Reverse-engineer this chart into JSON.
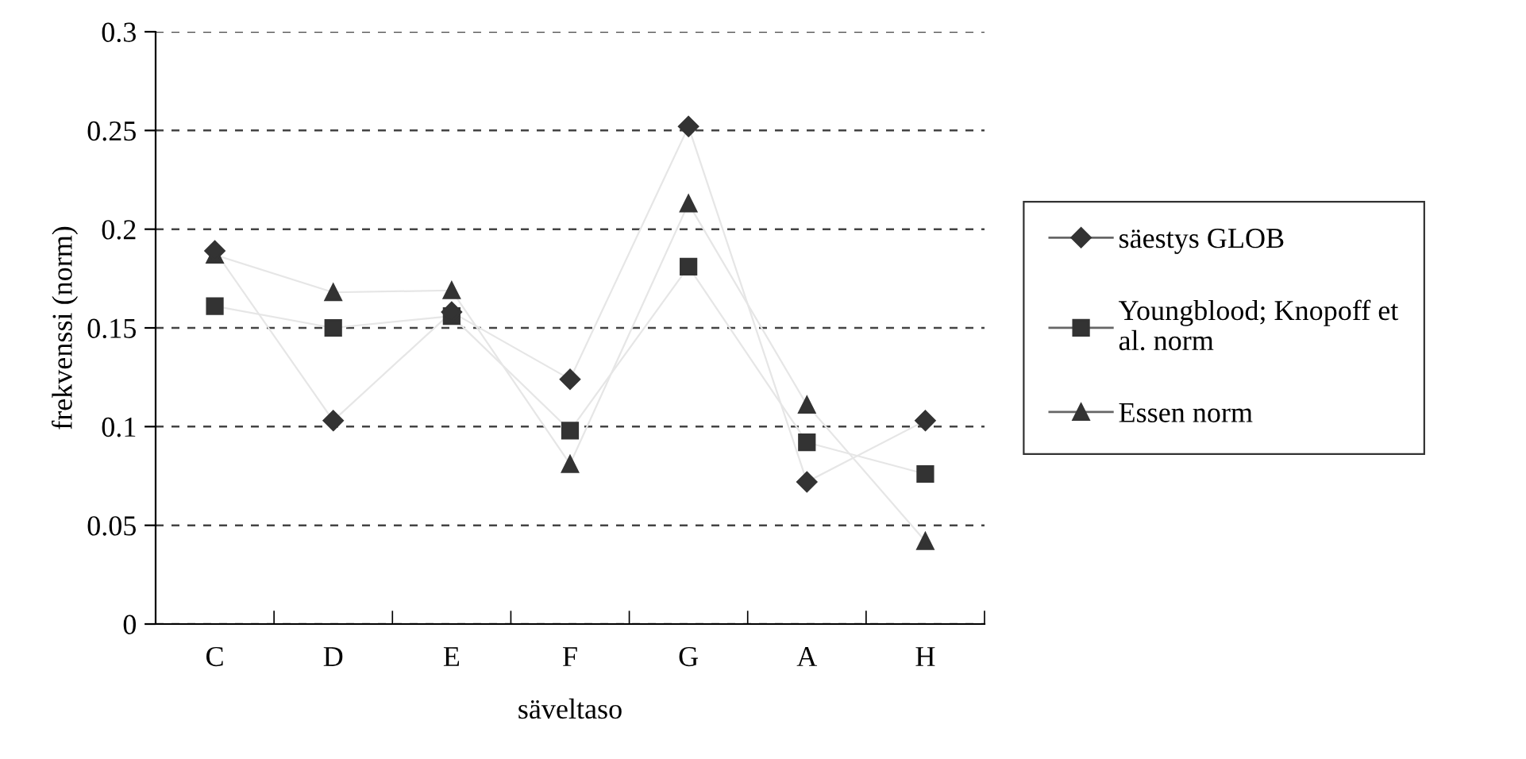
{
  "chart_data": {
    "type": "line",
    "xlabel": "säveltaso",
    "ylabel": "frekvenssi (norm)",
    "categories": [
      "C",
      "D",
      "E",
      "F",
      "G",
      "A",
      "H"
    ],
    "series": [
      {
        "name": "säestys GLOB",
        "color": "#333333",
        "marker": "diamond",
        "values": [
          0.189,
          0.103,
          0.158,
          0.124,
          0.252,
          0.072,
          0.103
        ]
      },
      {
        "name": "Youngblood; Knopoff et al. norm",
        "color": "#333333",
        "marker": "square",
        "values": [
          0.161,
          0.15,
          0.156,
          0.098,
          0.181,
          0.092,
          0.076
        ]
      },
      {
        "name": "Essen norm",
        "color": "#333333",
        "marker": "triangle",
        "values": [
          0.187,
          0.168,
          0.169,
          0.081,
          0.213,
          0.111,
          0.042
        ]
      }
    ],
    "ylim": [
      0,
      0.3
    ],
    "yticks": [
      0,
      0.05,
      0.1,
      0.15,
      0.2,
      0.25,
      0.3
    ],
    "grid": "y",
    "legend": "right"
  }
}
